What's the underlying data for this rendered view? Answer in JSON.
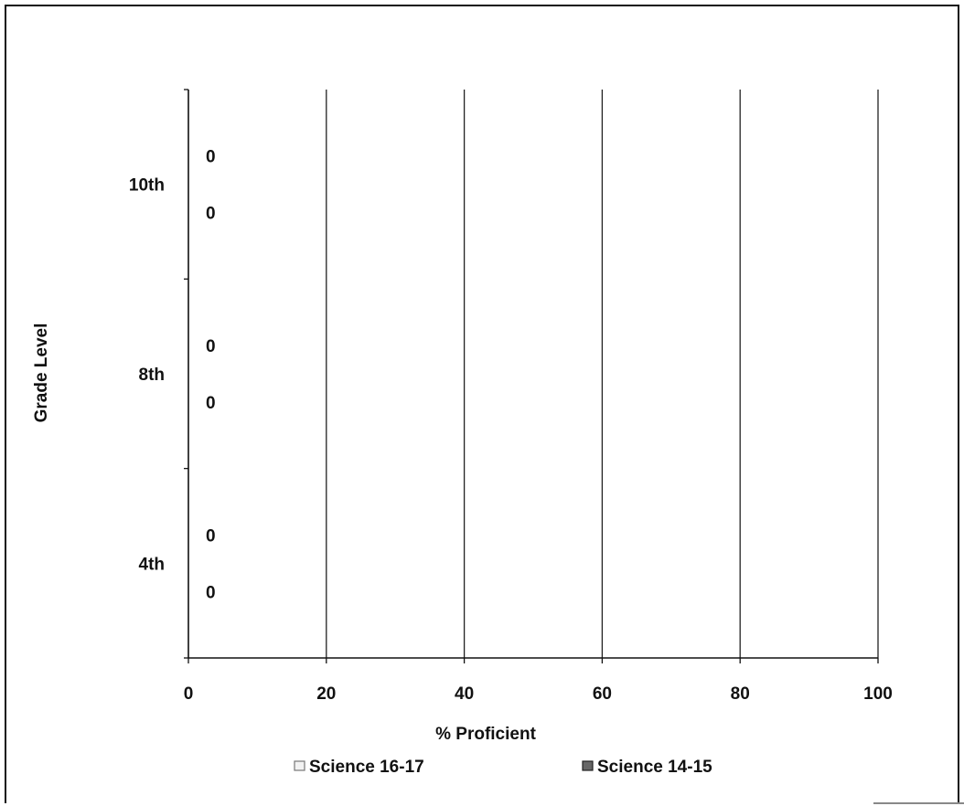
{
  "chart_data": {
    "type": "bar",
    "orientation": "horizontal",
    "categories": [
      "4th",
      "8th",
      "10th"
    ],
    "series": [
      {
        "name": "Science 16-17",
        "values": [
          0,
          0,
          0
        ],
        "color": "#ffffff"
      },
      {
        "name": "Science 14-15",
        "values": [
          0,
          0,
          0
        ],
        "color": "#555555"
      }
    ],
    "xlabel": "% Proficient",
    "ylabel": "Grade Level",
    "xlim": [
      0,
      100
    ],
    "xticks": [
      "0",
      "20",
      "40",
      "60",
      "80",
      "100"
    ],
    "grid": true,
    "legend_position": "bottom"
  }
}
